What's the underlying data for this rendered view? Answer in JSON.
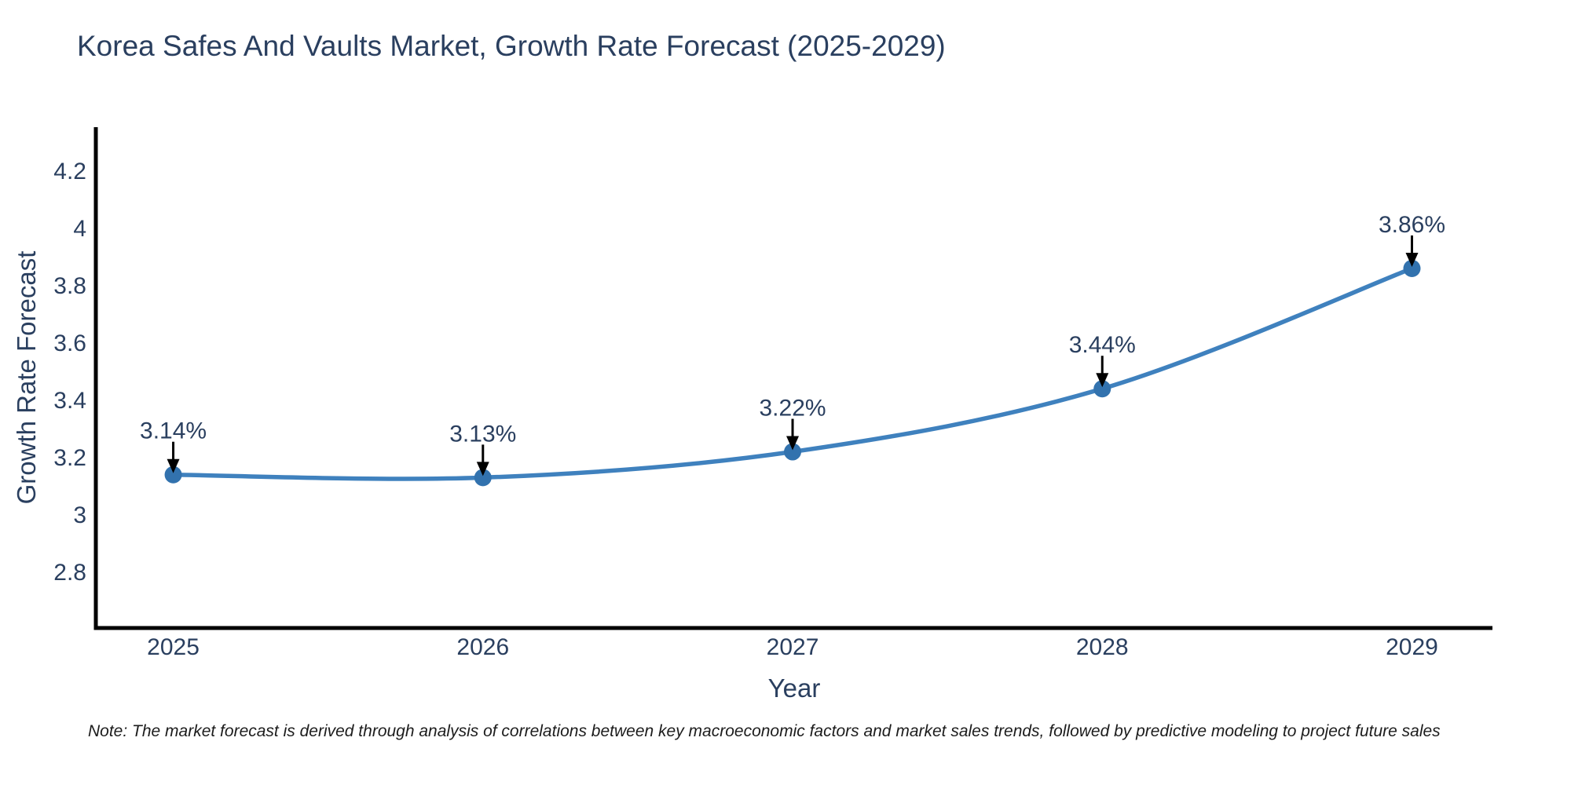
{
  "title": "Korea Safes And Vaults Market, Growth Rate Forecast (2025-2029)",
  "note": "Note: The market forecast is derived through analysis of correlations between key macroeconomic factors and market sales trends, followed by predictive modeling to project future sales",
  "chart_data": {
    "type": "line",
    "title": "Korea Safes And Vaults Market, Growth Rate Forecast (2025-2029)",
    "x": [
      2025,
      2026,
      2027,
      2028,
      2029
    ],
    "y": [
      3.14,
      3.13,
      3.22,
      3.44,
      3.86
    ],
    "point_labels": [
      "3.14%",
      "3.13%",
      "3.22%",
      "3.44%",
      "3.86%"
    ],
    "xtick_labels": [
      "2025",
      "2026",
      "2027",
      "2028",
      "2029"
    ],
    "yticks": [
      2.8,
      3.0,
      3.2,
      3.4,
      3.6,
      3.8,
      4.0,
      4.2
    ],
    "ytick_labels": [
      "2.8",
      "3",
      "3.2",
      "3.4",
      "3.6",
      "3.8",
      "4",
      "4.2"
    ],
    "xlabel": "Year",
    "ylabel": "Growth Rate Forecast",
    "xlim": [
      2024.75,
      2029.26
    ],
    "ylim": [
      2.605,
      4.353
    ],
    "grid": false,
    "legend": false,
    "line_shape": "spline",
    "line_color": "#3f81be",
    "marker_color": "#3272ae",
    "axis_color": "#000000",
    "arrow_color": "#000000",
    "text_color": "#2a3f5f"
  }
}
